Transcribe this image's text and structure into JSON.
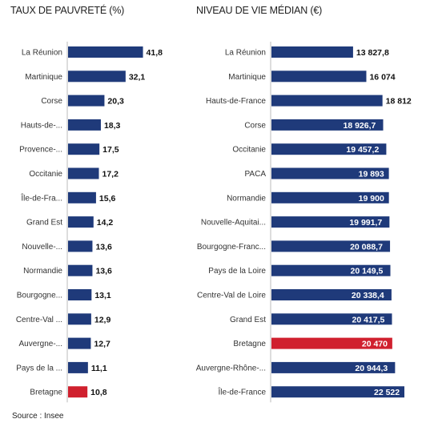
{
  "chart_data": [
    {
      "type": "bar",
      "orientation": "horizontal",
      "title": "TAUX DE PAUVRETÉ (%)",
      "categories": [
        "La Réunion",
        "Martinique",
        "Corse",
        "Hauts-de-...",
        "Provence-...",
        "Occitanie",
        "Île-de-Fra...",
        "Grand Est",
        "Nouvelle-...",
        "Normandie",
        "Bourgogne...",
        "Centre-Val ...",
        "Auvergne-...",
        "Pays de la ...",
        "Bretagne"
      ],
      "values": [
        41.8,
        32.1,
        20.3,
        18.3,
        17.5,
        17.2,
        15.6,
        14.2,
        13.6,
        13.6,
        13.1,
        12.9,
        12.7,
        11.1,
        10.8
      ],
      "value_labels": [
        "41,8",
        "32,1",
        "20,3",
        "18,3",
        "17,5",
        "17,2",
        "15,6",
        "14,2",
        "13,6",
        "13,6",
        "13,1",
        "12,9",
        "12,7",
        "11,1",
        "10,8"
      ],
      "highlight": "Bretagne",
      "xlim": [
        0,
        42
      ],
      "grid": false,
      "legend": "none"
    },
    {
      "type": "bar",
      "orientation": "horizontal",
      "title": "NIVEAU DE VIE MÉDIAN (€)",
      "categories": [
        "La Réunion",
        "Martinique",
        "Hauts-de-France",
        "Corse",
        "Occitanie",
        "PACA",
        "Normandie",
        "Nouvelle-Aquitai...",
        "Bourgogne-Franc...",
        "Pays de la Loire",
        "Centre-Val de Loire",
        "Grand Est",
        "Bretagne",
        "Auvergne-Rhône-...",
        "Île-de-France"
      ],
      "values": [
        13827.8,
        16074,
        18812,
        18926.7,
        19457.2,
        19893,
        19900,
        19991.7,
        20088.7,
        20149.5,
        20338.4,
        20417.5,
        20470,
        20944.3,
        22522
      ],
      "value_labels": [
        "13 827,8",
        "16 074",
        "18 812",
        "18 926,7",
        "19 457,2",
        "19 893",
        "19 900",
        "19 991,7",
        "20 088,7",
        "20 149,5",
        "20 338,4",
        "20 417,5",
        "20 470",
        "20 944,3",
        "22 522"
      ],
      "highlight": "Bretagne",
      "xlim": [
        0,
        22522
      ],
      "grid": false,
      "legend": "none"
    }
  ],
  "source": "Source : Insee",
  "colors": {
    "bar": "#1f3a7a",
    "highlight": "#d0202e",
    "axis": "#bbbbbb"
  }
}
